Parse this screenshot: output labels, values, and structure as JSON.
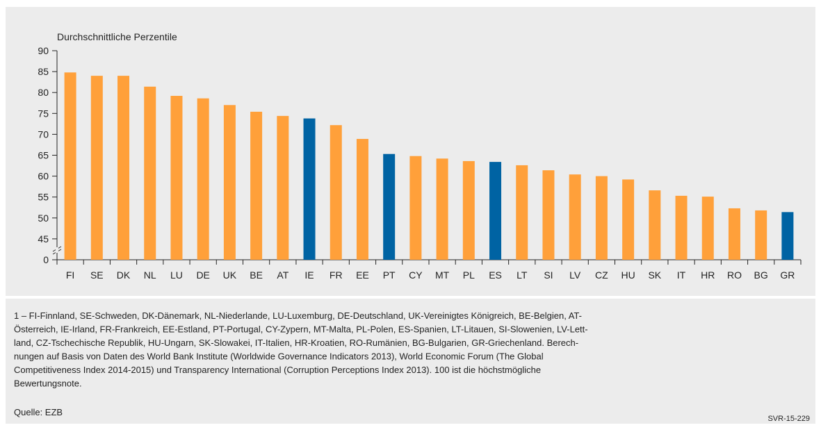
{
  "chart_data": {
    "type": "bar",
    "y_axis_title": "Durchschnittliche Perzentile",
    "categories": [
      "FI",
      "SE",
      "DK",
      "NL",
      "LU",
      "DE",
      "UK",
      "BE",
      "AT",
      "IE",
      "FR",
      "EE",
      "PT",
      "CY",
      "MT",
      "PL",
      "ES",
      "LT",
      "SI",
      "LV",
      "CZ",
      "HU",
      "SK",
      "IT",
      "HR",
      "RO",
      "BG",
      "GR"
    ],
    "values": [
      84.8,
      84.0,
      84.0,
      81.4,
      79.2,
      78.6,
      77.0,
      75.4,
      74.4,
      73.8,
      72.2,
      68.9,
      65.3,
      64.8,
      64.2,
      63.6,
      63.4,
      62.6,
      61.4,
      60.4,
      60.0,
      59.2,
      56.6,
      55.3,
      55.1,
      52.3,
      51.8,
      51.4
    ],
    "colors": [
      "#ffa03a",
      "#ffa03a",
      "#ffa03a",
      "#ffa03a",
      "#ffa03a",
      "#ffa03a",
      "#ffa03a",
      "#ffa03a",
      "#ffa03a",
      "#0063a3",
      "#ffa03a",
      "#ffa03a",
      "#0063a3",
      "#ffa03a",
      "#ffa03a",
      "#ffa03a",
      "#0063a3",
      "#ffa03a",
      "#ffa03a",
      "#ffa03a",
      "#ffa03a",
      "#ffa03a",
      "#ffa03a",
      "#ffa03a",
      "#ffa03a",
      "#ffa03a",
      "#ffa03a",
      "#0063a3"
    ],
    "ylim": [
      0,
      90
    ],
    "axis_break": [
      0,
      40
    ],
    "yticks": [
      0,
      45,
      50,
      55,
      60,
      65,
      70,
      75,
      80,
      85,
      90
    ],
    "footnote": [
      "1 – FI-Finnland, SE-Schweden, DK-Dänemark, NL-Niederlande, LU-Luxemburg, DE-Deutschland, UK-Vereinigtes Königreich, BE-Belgien, AT-",
      "Österreich, IE-Irland, FR-Frankreich, EE-Estland, PT-Portugal, CY-Zypern, MT-Malta, PL-Polen, ES-Spanien, LT-Litauen, SI-Slowenien, LV-Lett-",
      "land, CZ-Tschechische Republik, HU-Ungarn, SK-Slowakei, IT-Italien, HR-Kroatien, RO-Rumänien, BG-Bulgarien,  GR-Griechenland. Berech-",
      "nungen auf Basis von Daten des World Bank Institute (Worldwide Governance Indicators 2013), World Economic Forum (The Global",
      "Competitiveness Index 2014-2015) und Transparency International (Corruption Perceptions Index 2013). 100 ist die höchstmögliche",
      "Bewertungsnote."
    ],
    "source": "Quelle: EZB",
    "code": "SVR-15-229"
  }
}
